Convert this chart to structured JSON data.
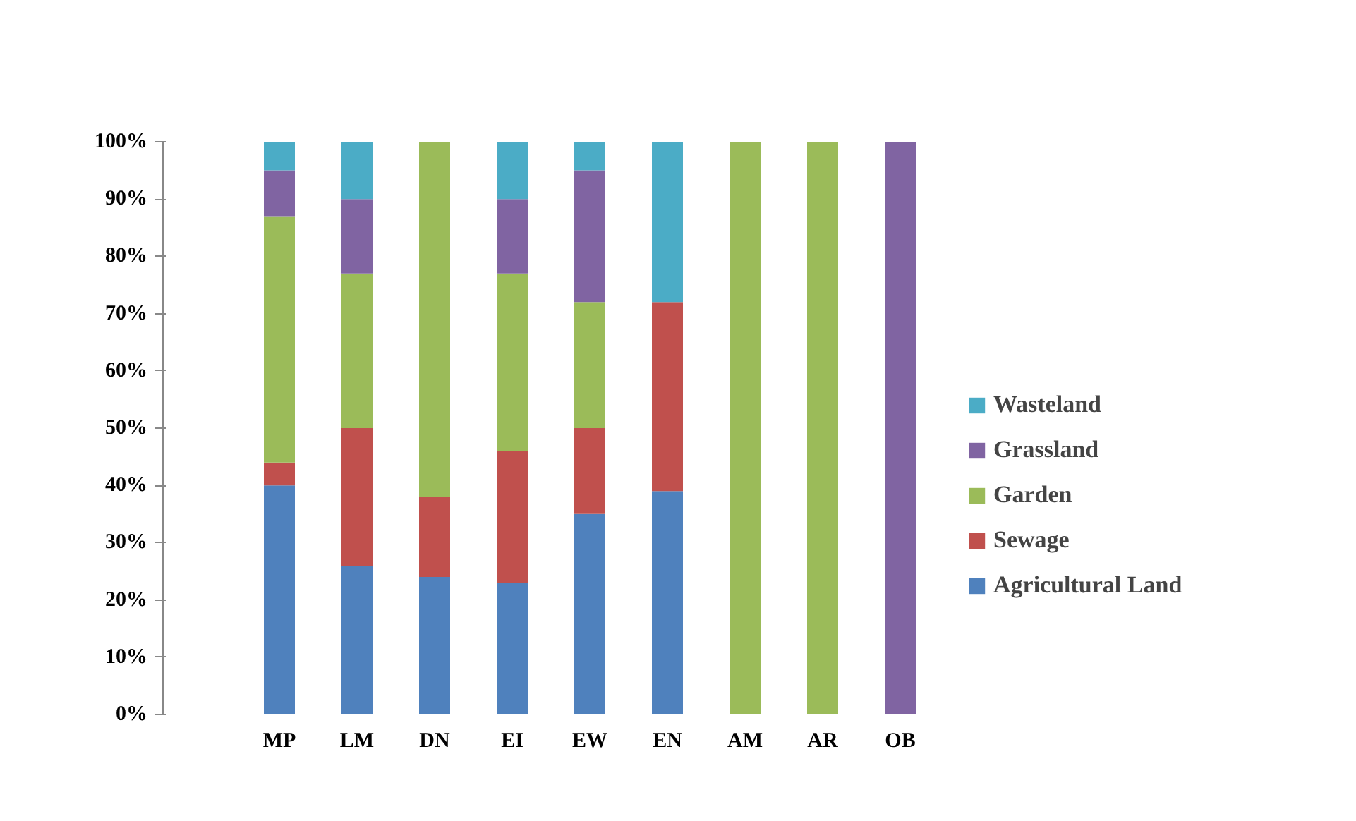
{
  "chart_data": {
    "type": "bar",
    "stacked": true,
    "categories": [
      null,
      "MP",
      "LM",
      "DN",
      "EI",
      "EW",
      "EN",
      "AM",
      "AR",
      "OB"
    ],
    "series": [
      {
        "name": "Agricultural Land",
        "color": "#4f81bd",
        "values": [
          null,
          40,
          26,
          24,
          23,
          35,
          39,
          0,
          0,
          0
        ]
      },
      {
        "name": "Sewage",
        "color": "#c0504d",
        "values": [
          null,
          4,
          24,
          14,
          23,
          15,
          33,
          0,
          0,
          0
        ]
      },
      {
        "name": "Garden",
        "color": "#9bbb59",
        "values": [
          null,
          43,
          27,
          62,
          31,
          22,
          0,
          100,
          100,
          0
        ]
      },
      {
        "name": "Grassland",
        "color": "#8064a2",
        "values": [
          null,
          8,
          13,
          0,
          13,
          23,
          0,
          0,
          0,
          100
        ]
      },
      {
        "name": "Wasteland",
        "color": "#4bacc6",
        "values": [
          null,
          5,
          10,
          0,
          10,
          5,
          28,
          0,
          0,
          0
        ]
      }
    ],
    "ylim": [
      0,
      100
    ],
    "yticks": [
      {
        "value": 0,
        "label": "0%"
      },
      {
        "value": 10,
        "label": "10%"
      },
      {
        "value": 20,
        "label": "20%"
      },
      {
        "value": 30,
        "label": "30%"
      },
      {
        "value": 40,
        "label": "40%"
      },
      {
        "value": 50,
        "label": "50%"
      },
      {
        "value": 60,
        "label": "60%"
      },
      {
        "value": 70,
        "label": "70%"
      },
      {
        "value": 80,
        "label": "80%"
      },
      {
        "value": 90,
        "label": "90%"
      },
      {
        "value": 100,
        "label": "100%"
      }
    ],
    "grid": false,
    "legend": "right"
  }
}
